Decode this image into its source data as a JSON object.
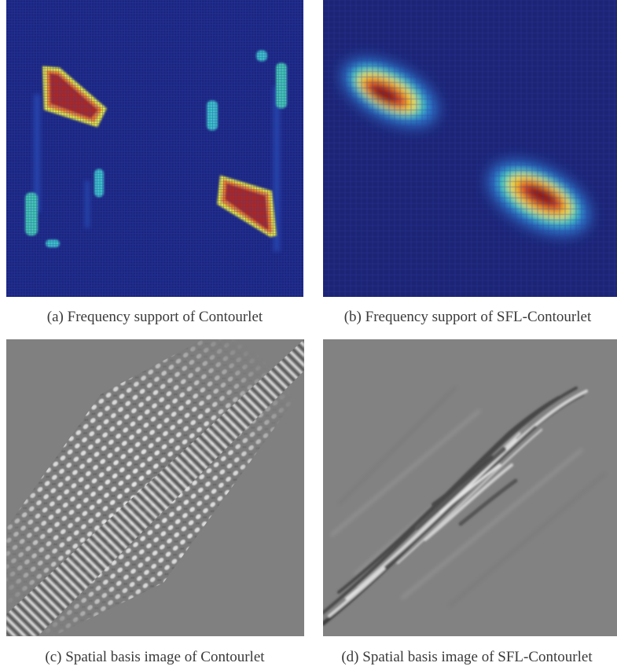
{
  "figure": {
    "panels": [
      {
        "id": "a",
        "caption": "(a)  Frequency support of Contourlet"
      },
      {
        "id": "b",
        "caption": "(b)  Frequency support of SFL-Contourlet"
      },
      {
        "id": "c",
        "caption": "(c)  Spatial basis image of Contourlet"
      },
      {
        "id": "d",
        "caption": "(d)  Spatial basis image of SFL-Contourlet"
      }
    ],
    "colors": {
      "heatmap_background": "#1a237e",
      "heatmap_hot": "#b71c1c",
      "heatmap_warm": "#f9e21e",
      "heatmap_mid": "#2fc5b4",
      "spatial_gray": "#7f7f7f"
    }
  }
}
